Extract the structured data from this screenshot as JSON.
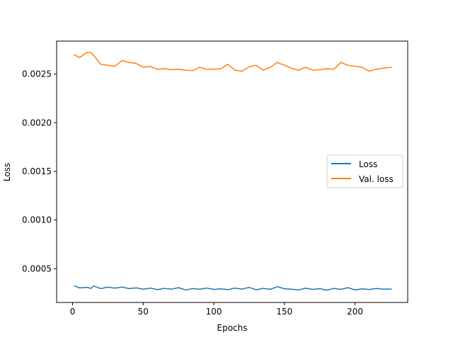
{
  "chart_data": {
    "type": "line",
    "title": "",
    "xlabel": "Epochs",
    "ylabel": "Loss",
    "xlim": [
      -11.3,
      237.3
    ],
    "ylim": [
      0.000153,
      0.002839
    ],
    "grid": false,
    "legend_placement": "center-right",
    "x_ticks": [
      0,
      50,
      100,
      150,
      200
    ],
    "x_tick_labels": [
      "0",
      "50",
      "100",
      "150",
      "200"
    ],
    "y_ticks": [
      0.0005,
      0.001,
      0.0015,
      0.002,
      0.0025
    ],
    "y_tick_labels": [
      "0.0005",
      "0.0010",
      "0.0015",
      "0.0020",
      "0.0025"
    ],
    "x": [
      1,
      5,
      10,
      13,
      15,
      20,
      25,
      30,
      35,
      40,
      45,
      50,
      55,
      60,
      65,
      70,
      75,
      80,
      85,
      90,
      95,
      100,
      105,
      110,
      115,
      120,
      125,
      130,
      135,
      140,
      145,
      150,
      155,
      160,
      165,
      170,
      175,
      180,
      185,
      190,
      195,
      200,
      205,
      210,
      215,
      220,
      226
    ],
    "series": [
      {
        "name": "Loss",
        "color": "#1f77b4",
        "values": [
          0.000325,
          0.000302,
          0.000309,
          0.000298,
          0.000322,
          0.000296,
          0.00031,
          0.0003,
          0.000312,
          0.000295,
          0.000303,
          0.00029,
          0.000301,
          0.000285,
          0.000298,
          0.00029,
          0.000305,
          0.000282,
          0.000296,
          0.00029,
          0.000301,
          0.000287,
          0.000293,
          0.000285,
          0.000301,
          0.00029,
          0.000308,
          0.000283,
          0.000298,
          0.000288,
          0.000315,
          0.000294,
          0.00029,
          0.000282,
          0.000299,
          0.000287,
          0.000295,
          0.00028,
          0.000297,
          0.000288,
          0.000305,
          0.000282,
          0.000293,
          0.000286,
          0.000297,
          0.000289,
          0.000291
        ]
      },
      {
        "name": "Val. loss",
        "color": "#ff7f0e",
        "values": [
          0.0027,
          0.00267,
          0.00272,
          0.002722,
          0.00269,
          0.0026,
          0.00259,
          0.00258,
          0.00264,
          0.00262,
          0.00261,
          0.00257,
          0.00258,
          0.00255,
          0.002555,
          0.002545,
          0.00255,
          0.00254,
          0.002535,
          0.00257,
          0.00255,
          0.00255,
          0.002555,
          0.0026,
          0.00254,
          0.00253,
          0.002575,
          0.00259,
          0.00254,
          0.00257,
          0.00262,
          0.00259,
          0.00256,
          0.00254,
          0.00257,
          0.00254,
          0.002545,
          0.002555,
          0.00255,
          0.00262,
          0.00259,
          0.00258,
          0.00257,
          0.00253,
          0.00255,
          0.00256,
          0.00257
        ]
      }
    ]
  }
}
